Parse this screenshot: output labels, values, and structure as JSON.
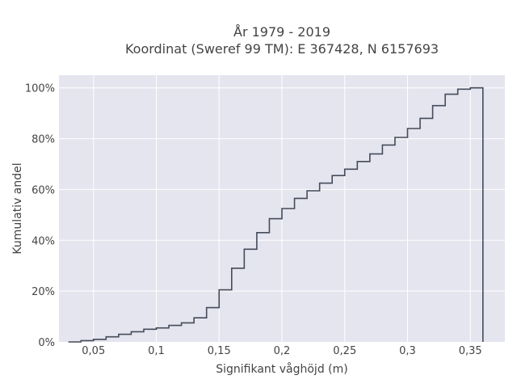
{
  "chart_data": {
    "type": "line",
    "line_shape": "step",
    "title_lines": [
      "År 1979 - 2019",
      "Koordinat (Sweref 99 TM): E 367428, N 6157693"
    ],
    "xlabel": "Signifikant våghöjd (m)",
    "ylabel": "Kumulativ andel",
    "xlim": [
      0.0225,
      0.3775
    ],
    "ylim": [
      0,
      1.05
    ],
    "x_ticks": [
      0.05,
      0.1,
      0.15,
      0.2,
      0.25,
      0.3,
      0.35
    ],
    "x_tick_labels": [
      "0,05",
      "0,1",
      "0,15",
      "0,2",
      "0,25",
      "0,3",
      "0,35"
    ],
    "y_ticks": [
      0,
      0.2,
      0.4,
      0.6,
      0.8,
      1.0
    ],
    "y_tick_labels": [
      "0%",
      "20%",
      "40%",
      "60%",
      "80%",
      "100%"
    ],
    "grid": true,
    "background_color": "#e5e5ef",
    "grid_color": "#ffffff",
    "line_color": "#444b5a",
    "series": [
      {
        "x": [
          0.03,
          0.04,
          0.05,
          0.06,
          0.07,
          0.08,
          0.09,
          0.1,
          0.11,
          0.12,
          0.13,
          0.14,
          0.15,
          0.16,
          0.17,
          0.18,
          0.19,
          0.2,
          0.21,
          0.22,
          0.23,
          0.24,
          0.25,
          0.26,
          0.27,
          0.28,
          0.29,
          0.3,
          0.31,
          0.32,
          0.33,
          0.34,
          0.35,
          0.36
        ],
        "y": [
          0.0,
          0.005,
          0.01,
          0.02,
          0.03,
          0.04,
          0.05,
          0.055,
          0.065,
          0.075,
          0.095,
          0.135,
          0.205,
          0.29,
          0.365,
          0.43,
          0.485,
          0.525,
          0.565,
          0.595,
          0.625,
          0.655,
          0.68,
          0.71,
          0.74,
          0.775,
          0.805,
          0.84,
          0.88,
          0.93,
          0.975,
          0.995,
          1.0,
          0.0
        ]
      }
    ]
  }
}
